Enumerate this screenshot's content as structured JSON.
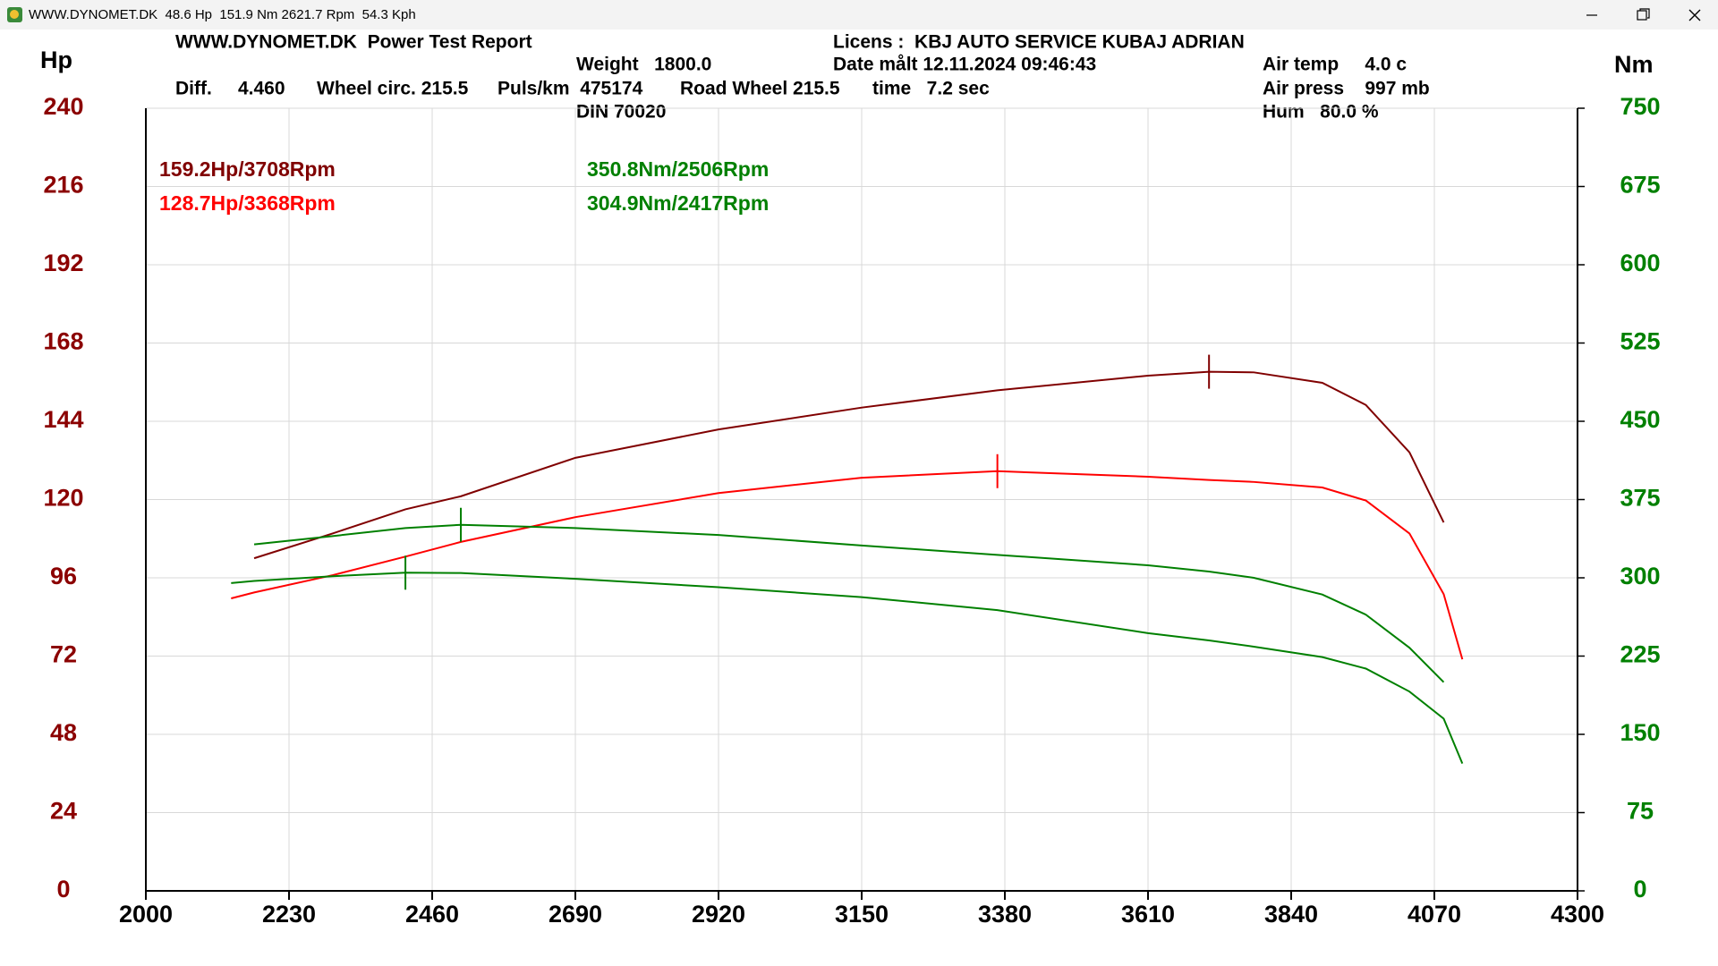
{
  "window": {
    "title": "WWW.DYNOMET.DK  48.6 Hp  151.9 Nm 2621.7 Rpm  54.3 Kph"
  },
  "chart_data": {
    "type": "line",
    "title": "WWW.DYNOMET.DK  Power Test Report",
    "info": [
      "Weight   1800.0",
      "Licens :  KBJ AUTO SERVICE KUBAJ ADRIAN",
      "Date målt 12.11.2024 09:46:43",
      "Diff.     4.460",
      "Wheel circ. 215.5",
      "Puls/km  475174",
      "Road Wheel 215.5",
      "time   7.2 sec",
      "DIN 70020",
      "Air temp     4.0 c",
      "Air press    997 mb",
      "Hum   80.0 %"
    ],
    "y_label": "Hp",
    "y2_label": "Nm",
    "x": [
      2137,
      2174,
      2300,
      2417,
      2506,
      2690,
      2920,
      3150,
      3368,
      3610,
      3708,
      3780,
      3890,
      3960,
      4030,
      4085,
      4115
    ],
    "series": [
      {
        "name": "159.2Hp/3708Rpm",
        "color": "#800000",
        "axis": "y",
        "values": [
          null,
          102,
          109.6,
          117,
          121,
          132.8,
          141.5,
          148.2,
          153.5,
          158,
          159.2,
          159,
          155.8,
          149,
          134.5,
          113,
          null
        ]
      },
      {
        "name": "128.7Hp/3368Rpm",
        "color": "#ff0000",
        "axis": "y",
        "values": [
          89.7,
          91.5,
          96.8,
          102.5,
          107,
          114.6,
          122,
          126.7,
          128.7,
          127,
          126,
          125.4,
          123.7,
          119.7,
          109.6,
          91,
          71
        ]
      },
      {
        "name": "350.8Nm/2506Rpm",
        "color": "#008000",
        "axis": "y2",
        "values": [
          null,
          332,
          340,
          347.7,
          350.8,
          347.7,
          341,
          331,
          322,
          312,
          306,
          300,
          284,
          264.7,
          233,
          200,
          null
        ]
      },
      {
        "name": "304.9Nm/2417Rpm",
        "color": "#008000",
        "axis": "y2",
        "values": [
          295,
          297,
          301.5,
          304.9,
          304.6,
          299,
          291,
          281.5,
          269,
          247,
          240,
          234,
          224,
          213,
          191,
          165,
          122
        ]
      }
    ],
    "xlim": [
      2000,
      4300
    ],
    "xticks": [
      2000,
      2230,
      2460,
      2690,
      2920,
      3150,
      3380,
      3610,
      3840,
      4070,
      4300
    ],
    "ylim": [
      0,
      240
    ],
    "yticks": [
      0,
      24,
      48,
      72,
      96,
      120,
      144,
      168,
      192,
      216,
      240
    ],
    "y2lim": [
      0,
      750
    ],
    "y2ticks": [
      0,
      75,
      150,
      225,
      300,
      375,
      450,
      525,
      600,
      675,
      750
    ],
    "ytick_color": "#8b0000",
    "y2tick_color": "#008000",
    "grid": true
  }
}
